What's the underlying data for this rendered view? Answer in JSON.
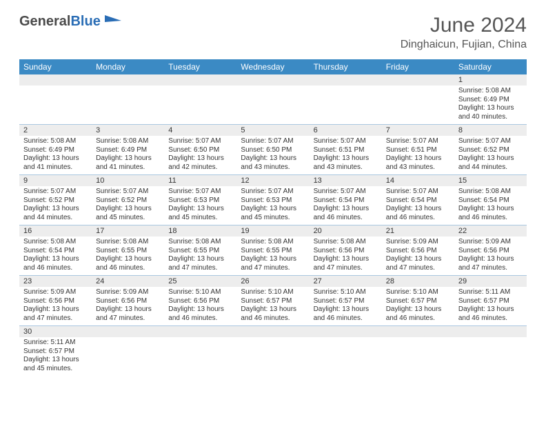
{
  "logo": {
    "part1": "General",
    "part2": "Blue"
  },
  "title": {
    "month": "June 2024",
    "location": "Dinghaicun, Fujian, China"
  },
  "colors": {
    "header_bg": "#3b8ac4",
    "header_text": "#ffffff",
    "daynum_bg": "#ededed",
    "cell_border": "#a9c7e0",
    "title_color": "#555555",
    "logo_gray": "#4a4a4a",
    "logo_blue": "#2a6db5"
  },
  "weekdays": [
    "Sunday",
    "Monday",
    "Tuesday",
    "Wednesday",
    "Thursday",
    "Friday",
    "Saturday"
  ],
  "weeks": [
    [
      null,
      null,
      null,
      null,
      null,
      null,
      {
        "n": "1",
        "sunrise": "5:08 AM",
        "sunset": "6:49 PM",
        "daylight": "13 hours and 40 minutes."
      }
    ],
    [
      {
        "n": "2",
        "sunrise": "5:08 AM",
        "sunset": "6:49 PM",
        "daylight": "13 hours and 41 minutes."
      },
      {
        "n": "3",
        "sunrise": "5:08 AM",
        "sunset": "6:49 PM",
        "daylight": "13 hours and 41 minutes."
      },
      {
        "n": "4",
        "sunrise": "5:07 AM",
        "sunset": "6:50 PM",
        "daylight": "13 hours and 42 minutes."
      },
      {
        "n": "5",
        "sunrise": "5:07 AM",
        "sunset": "6:50 PM",
        "daylight": "13 hours and 43 minutes."
      },
      {
        "n": "6",
        "sunrise": "5:07 AM",
        "sunset": "6:51 PM",
        "daylight": "13 hours and 43 minutes."
      },
      {
        "n": "7",
        "sunrise": "5:07 AM",
        "sunset": "6:51 PM",
        "daylight": "13 hours and 43 minutes."
      },
      {
        "n": "8",
        "sunrise": "5:07 AM",
        "sunset": "6:52 PM",
        "daylight": "13 hours and 44 minutes."
      }
    ],
    [
      {
        "n": "9",
        "sunrise": "5:07 AM",
        "sunset": "6:52 PM",
        "daylight": "13 hours and 44 minutes."
      },
      {
        "n": "10",
        "sunrise": "5:07 AM",
        "sunset": "6:52 PM",
        "daylight": "13 hours and 45 minutes."
      },
      {
        "n": "11",
        "sunrise": "5:07 AM",
        "sunset": "6:53 PM",
        "daylight": "13 hours and 45 minutes."
      },
      {
        "n": "12",
        "sunrise": "5:07 AM",
        "sunset": "6:53 PM",
        "daylight": "13 hours and 45 minutes."
      },
      {
        "n": "13",
        "sunrise": "5:07 AM",
        "sunset": "6:54 PM",
        "daylight": "13 hours and 46 minutes."
      },
      {
        "n": "14",
        "sunrise": "5:07 AM",
        "sunset": "6:54 PM",
        "daylight": "13 hours and 46 minutes."
      },
      {
        "n": "15",
        "sunrise": "5:08 AM",
        "sunset": "6:54 PM",
        "daylight": "13 hours and 46 minutes."
      }
    ],
    [
      {
        "n": "16",
        "sunrise": "5:08 AM",
        "sunset": "6:54 PM",
        "daylight": "13 hours and 46 minutes."
      },
      {
        "n": "17",
        "sunrise": "5:08 AM",
        "sunset": "6:55 PM",
        "daylight": "13 hours and 46 minutes."
      },
      {
        "n": "18",
        "sunrise": "5:08 AM",
        "sunset": "6:55 PM",
        "daylight": "13 hours and 47 minutes."
      },
      {
        "n": "19",
        "sunrise": "5:08 AM",
        "sunset": "6:55 PM",
        "daylight": "13 hours and 47 minutes."
      },
      {
        "n": "20",
        "sunrise": "5:08 AM",
        "sunset": "6:56 PM",
        "daylight": "13 hours and 47 minutes."
      },
      {
        "n": "21",
        "sunrise": "5:09 AM",
        "sunset": "6:56 PM",
        "daylight": "13 hours and 47 minutes."
      },
      {
        "n": "22",
        "sunrise": "5:09 AM",
        "sunset": "6:56 PM",
        "daylight": "13 hours and 47 minutes."
      }
    ],
    [
      {
        "n": "23",
        "sunrise": "5:09 AM",
        "sunset": "6:56 PM",
        "daylight": "13 hours and 47 minutes."
      },
      {
        "n": "24",
        "sunrise": "5:09 AM",
        "sunset": "6:56 PM",
        "daylight": "13 hours and 47 minutes."
      },
      {
        "n": "25",
        "sunrise": "5:10 AM",
        "sunset": "6:56 PM",
        "daylight": "13 hours and 46 minutes."
      },
      {
        "n": "26",
        "sunrise": "5:10 AM",
        "sunset": "6:57 PM",
        "daylight": "13 hours and 46 minutes."
      },
      {
        "n": "27",
        "sunrise": "5:10 AM",
        "sunset": "6:57 PM",
        "daylight": "13 hours and 46 minutes."
      },
      {
        "n": "28",
        "sunrise": "5:10 AM",
        "sunset": "6:57 PM",
        "daylight": "13 hours and 46 minutes."
      },
      {
        "n": "29",
        "sunrise": "5:11 AM",
        "sunset": "6:57 PM",
        "daylight": "13 hours and 46 minutes."
      }
    ],
    [
      {
        "n": "30",
        "sunrise": "5:11 AM",
        "sunset": "6:57 PM",
        "daylight": "13 hours and 45 minutes."
      },
      null,
      null,
      null,
      null,
      null,
      null
    ]
  ],
  "labels": {
    "sunrise": "Sunrise:",
    "sunset": "Sunset:",
    "daylight": "Daylight:"
  }
}
